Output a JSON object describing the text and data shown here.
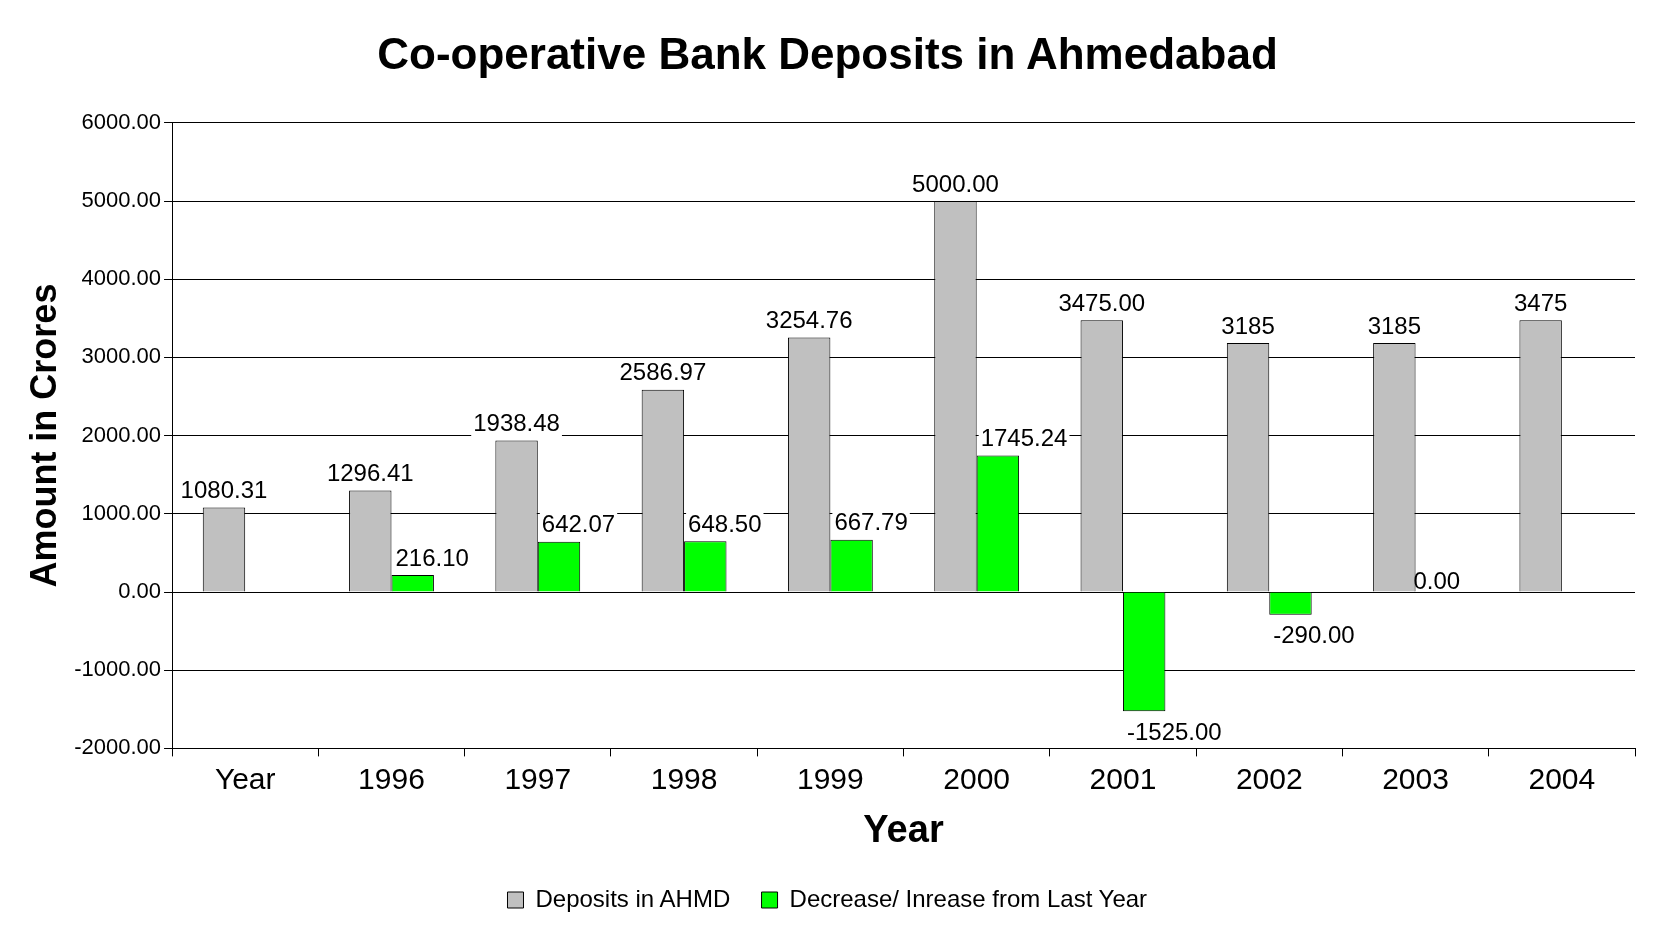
{
  "chart_data": {
    "type": "bar",
    "title": "Co-operative Bank Deposits in Ahmedabad",
    "xlabel": "Year",
    "ylabel": "Amount in Crores",
    "categories": [
      "Year",
      "1996",
      "1997",
      "1998",
      "1999",
      "2000",
      "2001",
      "2002",
      "2003",
      "2004"
    ],
    "series": [
      {
        "name": "Deposits in AHMD",
        "color": "#c0c0c0",
        "values": [
          1080.31,
          1296.41,
          1938.48,
          2586.97,
          3254.76,
          5000.0,
          3475.0,
          3185,
          3185,
          3475
        ],
        "value_labels": [
          "1080.31",
          "1296.41",
          "1938.48",
          "2586.97",
          "3254.76",
          "5000.00",
          "3475.00",
          "3185",
          "3185",
          "3475"
        ]
      },
      {
        "name": "Decrease/ Inrease from Last Year",
        "color": "#00ff00",
        "values": [
          null,
          216.1,
          642.07,
          648.5,
          667.79,
          1745.24,
          -1525.0,
          -290.0,
          0.0,
          null
        ],
        "value_labels": [
          null,
          "216.10",
          "642.07",
          "648.50",
          "667.79",
          "1745.24",
          "-1525.00",
          "-290.00",
          "0.00",
          null
        ]
      }
    ],
    "ylim": [
      -2000,
      6000
    ],
    "yticks": [
      {
        "value": -2000,
        "label": "-2000.00"
      },
      {
        "value": -1000,
        "label": "-1000.00"
      },
      {
        "value": 0,
        "label": "0.00"
      },
      {
        "value": 1000,
        "label": "1000.00"
      },
      {
        "value": 2000,
        "label": "2000.00"
      },
      {
        "value": 3000,
        "label": "3000.00"
      },
      {
        "value": 4000,
        "label": "4000.00"
      },
      {
        "value": 5000,
        "label": "5000.00"
      },
      {
        "value": 6000,
        "label": "6000.00"
      }
    ],
    "grid": "y",
    "legend": "bottom"
  }
}
